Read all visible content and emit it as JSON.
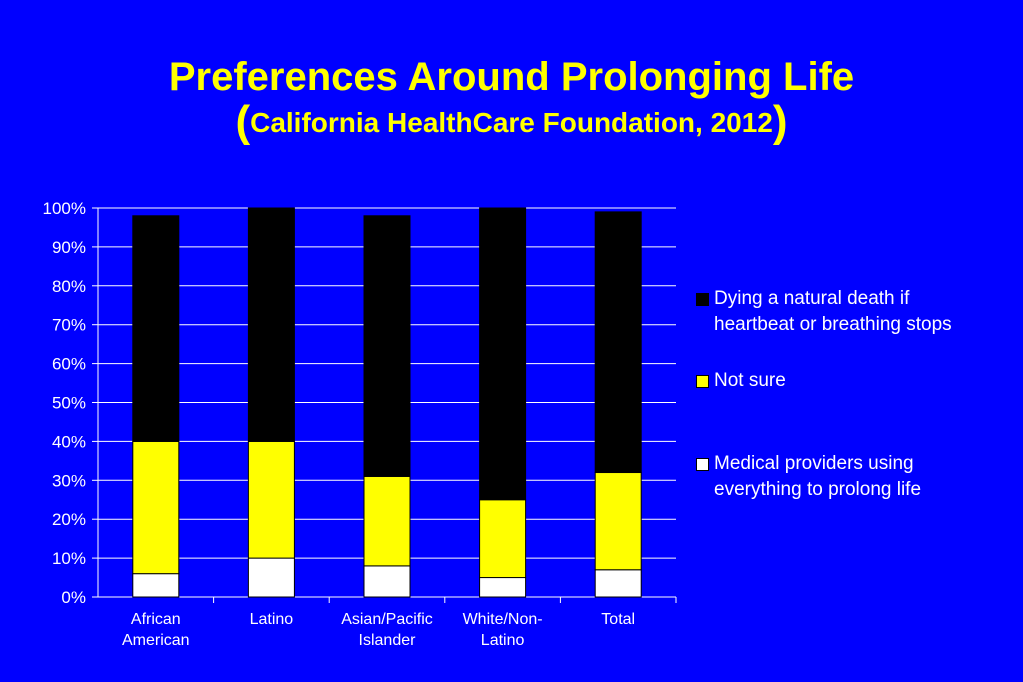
{
  "title": {
    "line1": "Preferences Around Prolonging Life",
    "open_paren": "(",
    "line2": "California HealthCare Foundation, 2012",
    "close_paren": ")"
  },
  "colors": {
    "background": "#0000FF",
    "title": "#FFFF00",
    "text": "#FFFFFF",
    "gridline": "#FFFFFF"
  },
  "chart_data": {
    "type": "bar",
    "stacked": true,
    "categories": [
      [
        "African",
        "American"
      ],
      [
        "Latino"
      ],
      [
        "Asian/Pacific",
        "Islander"
      ],
      [
        "White/Non-",
        "Latino"
      ],
      [
        "Total"
      ]
    ],
    "series": [
      {
        "name": "Medical providers using everything to prolong life",
        "color": "#FFFFFF",
        "values": [
          6,
          10,
          8,
          5,
          7
        ]
      },
      {
        "name": "Not sure",
        "color": "#FFFF00",
        "values": [
          34,
          30,
          23,
          20,
          25
        ]
      },
      {
        "name": "Dying a natural death if heartbeat or breathing stops",
        "color": "#000000",
        "values": [
          58,
          60,
          67,
          75,
          67
        ]
      }
    ],
    "ylim": [
      0,
      100
    ],
    "yticks": [
      "0%",
      "10%",
      "20%",
      "30%",
      "40%",
      "50%",
      "60%",
      "70%",
      "80%",
      "90%",
      "100%"
    ],
    "grid": true,
    "legend_position": "right"
  },
  "legend": [
    {
      "label_lines": [
        "Dying a natural death if",
        "heartbeat or breathing stops"
      ],
      "color": "#000000"
    },
    {
      "label_lines": [
        "Not sure"
      ],
      "color": "#FFFF00"
    },
    {
      "label_lines": [
        "Medical providers using",
        "everything to prolong life"
      ],
      "color": "#FFFFFF"
    }
  ]
}
